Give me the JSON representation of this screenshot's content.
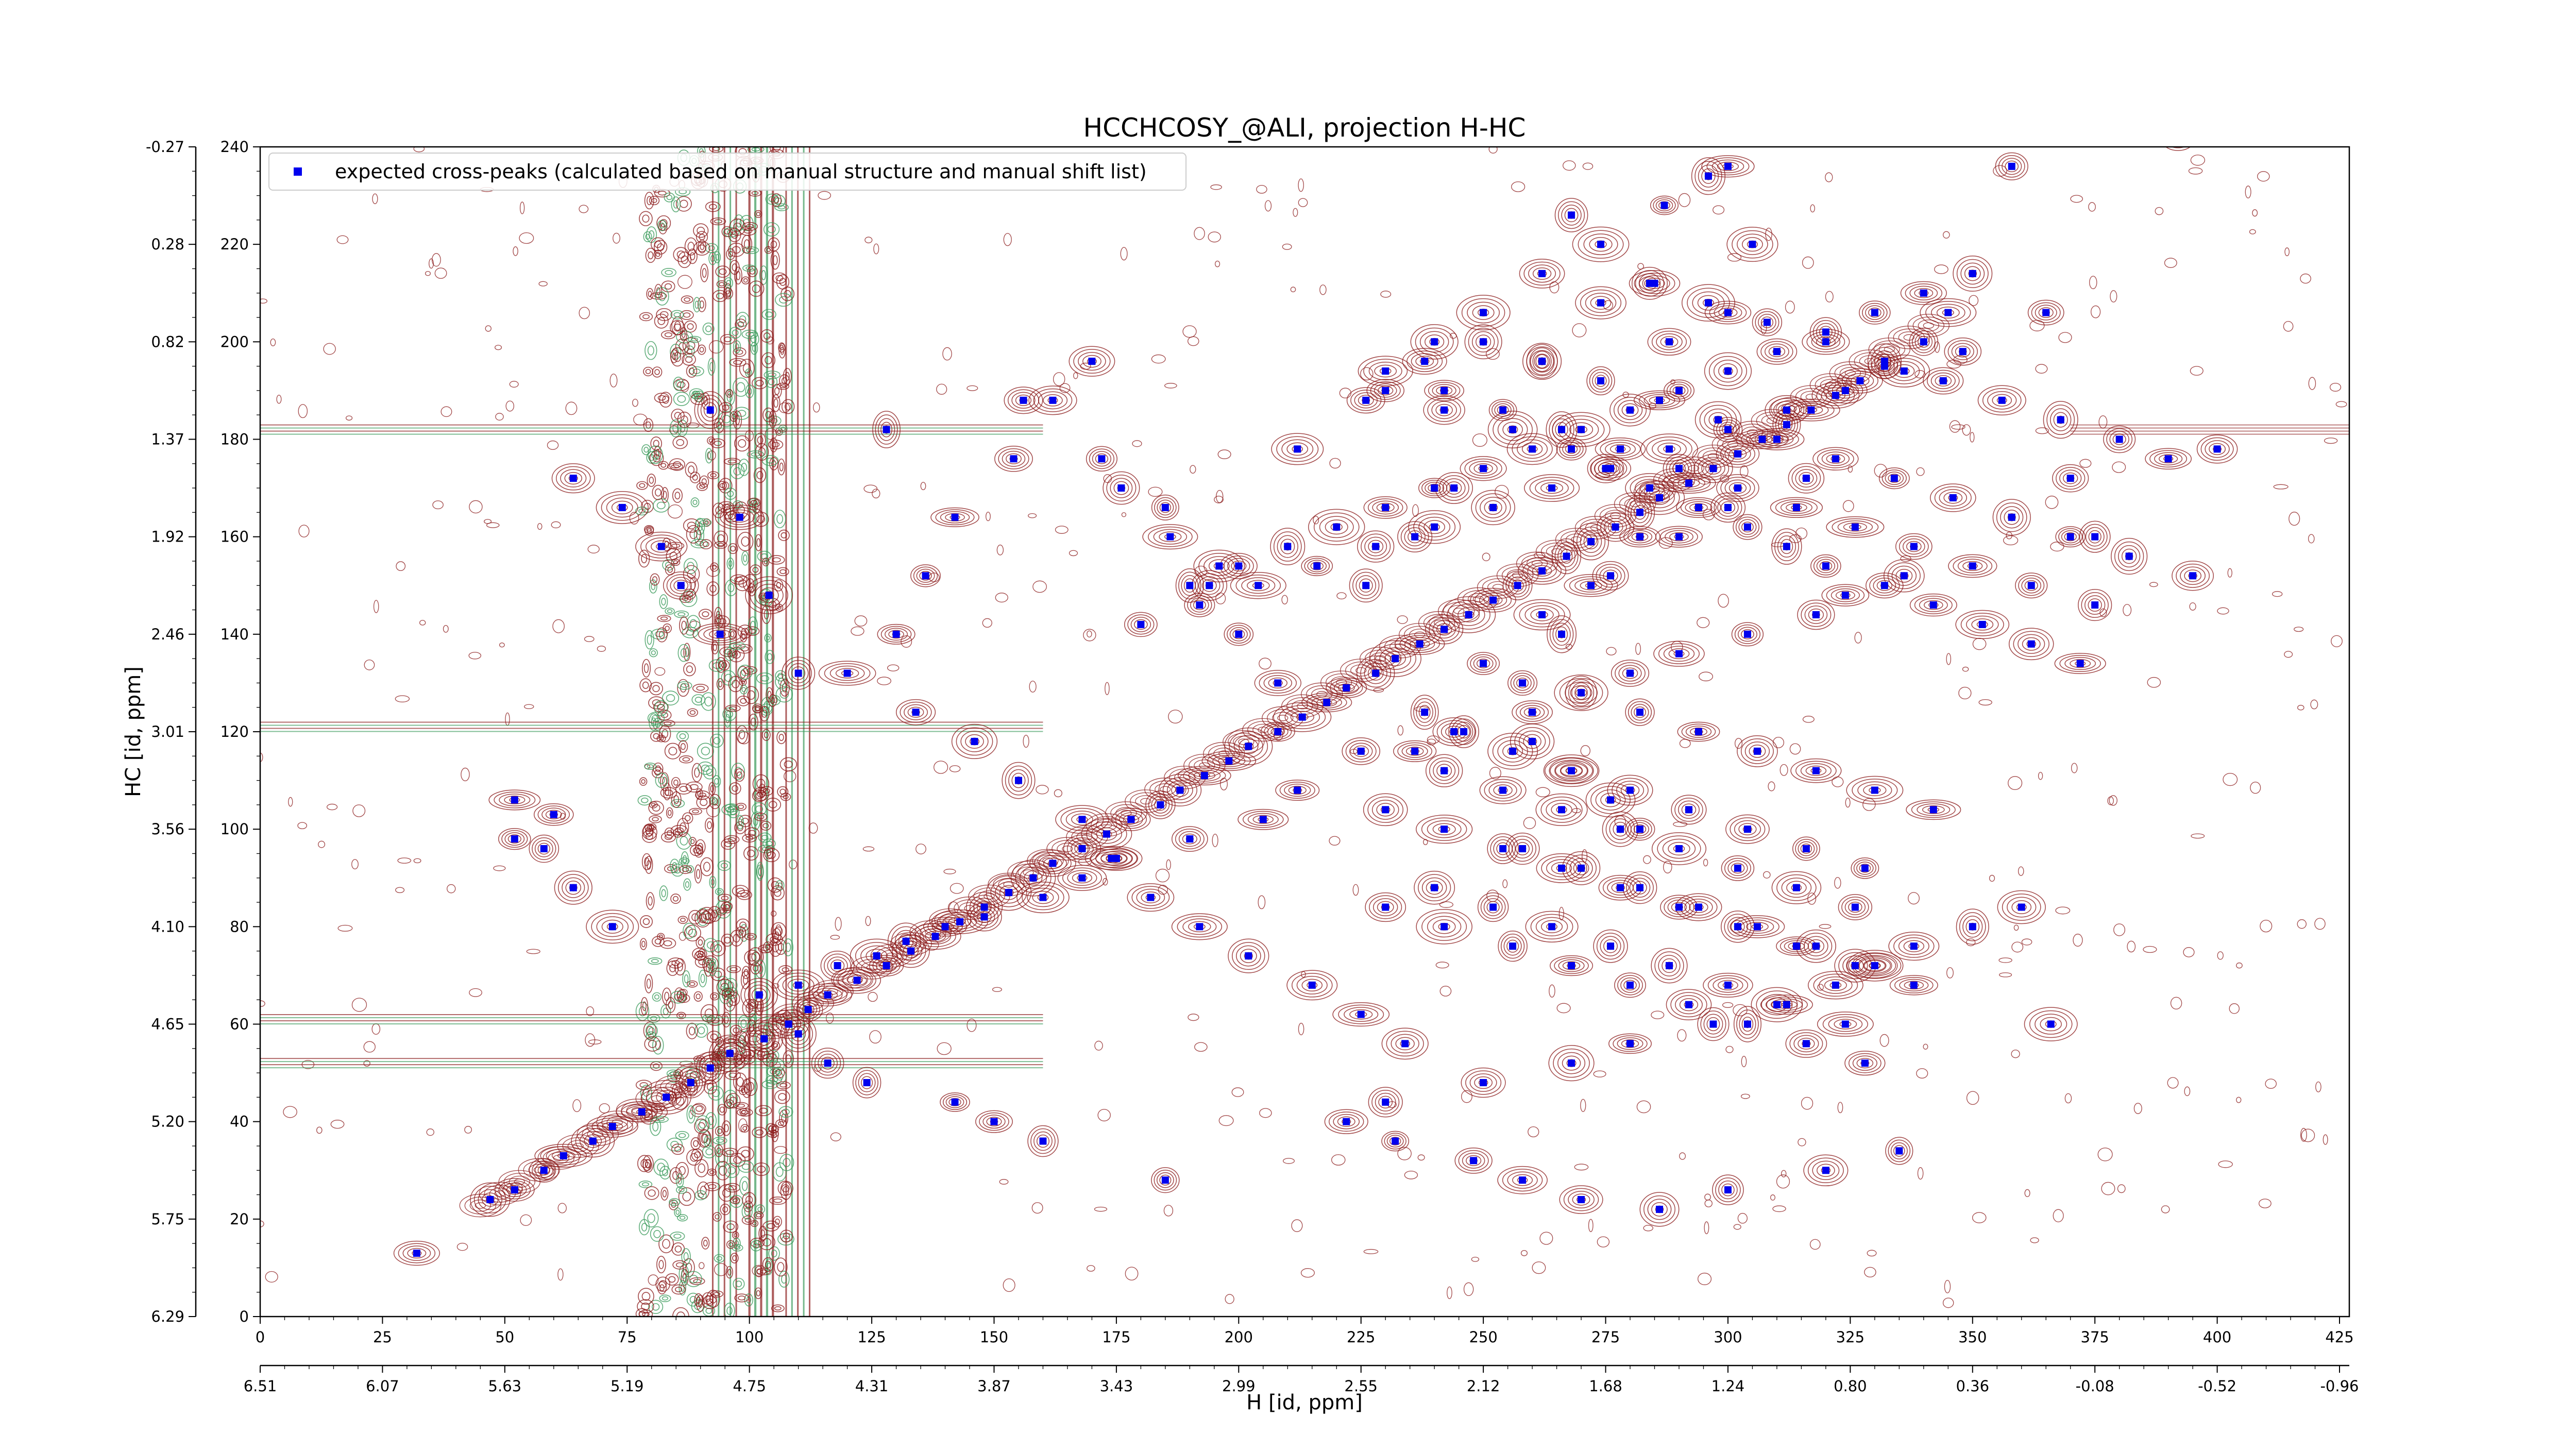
{
  "chart_data": {
    "type": "scatter",
    "title": "HCCHCOSY_@ALI, projection H-HC",
    "xlabel": "H [id, ppm]",
    "ylabel": "HC [id, ppm]",
    "xlim": [
      0,
      427
    ],
    "ylim": [
      0,
      240
    ],
    "x_ticks": [
      0,
      25,
      50,
      75,
      100,
      125,
      150,
      175,
      200,
      225,
      250,
      275,
      300,
      325,
      350,
      375,
      400,
      425
    ],
    "y_ticks": [
      0,
      20,
      40,
      60,
      80,
      100,
      120,
      140,
      160,
      180,
      200,
      220,
      240
    ],
    "x_ppm_ticks": [
      "6.51",
      "6.07",
      "5.63",
      "5.19",
      "4.75",
      "4.31",
      "3.87",
      "3.43",
      "2.99",
      "2.55",
      "2.12",
      "1.68",
      "1.24",
      "0.80",
      "0.36",
      "-0.08",
      "-0.52",
      "-0.96"
    ],
    "y_ppm_ticks": [
      "6.29",
      "5.75",
      "5.20",
      "4.65",
      "4.10",
      "3.56",
      "3.01",
      "2.46",
      "1.92",
      "1.37",
      "0.82",
      "0.28",
      "-0.27"
    ],
    "legend": {
      "position": "top-left",
      "entries": [
        "expected cross-peaks (calculated based on manual structure and manual shift list)"
      ]
    },
    "colors": {
      "marker": "#0000ee",
      "contour_positive": "#8b1a1a",
      "contour_negative": "#3a9a5a"
    },
    "series": [
      {
        "name": "expected cross-peaks (calculated based on manual structure and manual shift list)",
        "x": [
          47,
          52,
          58,
          62,
          68,
          72,
          78,
          83,
          88,
          92,
          96,
          103,
          108,
          112,
          116,
          122,
          128,
          133,
          138,
          143,
          148,
          153,
          158,
          162,
          168,
          173,
          178,
          184,
          188,
          193,
          198,
          202,
          208,
          213,
          218,
          222,
          228,
          232,
          237,
          242,
          247,
          252,
          257,
          262,
          267,
          272,
          277,
          282,
          286,
          292,
          297,
          302,
          307,
          312,
          317,
          322,
          327,
          332,
          340,
          345,
          32,
          52,
          60,
          102,
          110,
          118,
          126,
          132,
          140,
          148,
          160,
          168,
          175,
          190,
          205,
          212,
          225,
          238,
          250,
          262,
          276,
          290,
          300,
          316,
          128,
          156,
          172,
          185,
          196,
          212,
          226,
          238,
          250,
          262,
          274,
          287,
          300,
          316,
          240,
          262,
          274,
          285,
          268,
          296,
          305,
          322,
          358,
          365,
          392,
          400,
          370,
          375,
          288,
          300,
          230,
          242,
          256,
          268,
          275,
          284,
          294,
          304,
          312,
          320,
          332,
          342,
          352,
          362,
          372,
          236,
          246,
          260,
          270,
          280,
          290,
          304,
          318,
          324,
          336,
          52,
          58,
          64,
          72,
          110,
          116,
          124,
          142,
          150,
          160,
          185,
          64,
          74,
          82,
          86,
          94,
          120,
          134,
          146,
          155,
          168,
          174,
          182,
          192,
          202,
          215,
          225,
          234,
          260,
          268,
          276,
          282,
          222,
          232,
          248,
          258,
          270,
          286,
          300,
          320,
          335,
          230,
          250,
          268,
          280,
          297,
          310,
          322,
          330,
          338,
          350,
          230,
          242,
          256,
          268,
          280,
          292,
          304,
          316,
          328,
          240,
          252,
          264,
          276,
          288,
          300,
          312,
          324,
          258,
          270,
          282,
          294,
          306,
          318,
          330,
          230,
          242,
          254,
          266,
          278,
          290,
          302,
          314,
          326,
          338,
          242,
          254,
          266,
          278,
          290,
          302,
          314,
          326,
          244,
          256,
          268,
          280,
          292,
          304,
          316,
          328,
          270,
          282,
          294,
          306,
          318,
          330,
          342,
          360,
          366,
          190,
          200,
          210,
          220,
          230,
          240,
          250,
          260,
          270,
          280,
          290,
          300,
          310,
          320,
          330,
          340,
          350,
          180,
          192,
          204,
          216,
          228,
          240,
          252,
          264,
          276,
          288,
          300,
          312,
          324,
          336,
          348,
          230,
          242,
          254,
          266,
          278,
          290,
          302,
          314,
          326,
          338,
          350,
          362,
          375,
          250,
          262,
          274,
          286,
          298,
          310,
          322,
          334,
          346,
          358,
          370,
          382,
          395,
          284,
          296,
          308,
          320,
          332,
          344,
          356,
          368,
          380,
          390,
          92,
          98,
          104,
          110,
          130,
          136,
          142,
          154,
          162,
          170,
          176,
          186,
          194,
          200,
          208,
          226,
          236,
          244,
          258,
          266,
          272,
          282
        ],
        "y": [
          24,
          26,
          30,
          33,
          36,
          39,
          42,
          45,
          48,
          51,
          54,
          57,
          60,
          63,
          66,
          69,
          72,
          75,
          78,
          81,
          84,
          87,
          90,
          93,
          96,
          99,
          102,
          105,
          108,
          111,
          114,
          117,
          120,
          123,
          126,
          129,
          132,
          135,
          138,
          141,
          144,
          147,
          150,
          153,
          156,
          159,
          162,
          165,
          168,
          171,
          174,
          177,
          180,
          183,
          186,
          189,
          192,
          195,
          200,
          206,
          13,
          98,
          103,
          66,
          68,
          72,
          74,
          77,
          80,
          82,
          86,
          90,
          94,
          98,
          102,
          108,
          116,
          124,
          134,
          144,
          152,
          160,
          166,
          172,
          182,
          188,
          176,
          166,
          154,
          178,
          188,
          196,
          206,
          214,
          220,
          228,
          236,
          242,
          200,
          196,
          208,
          212,
          226,
          234,
          220,
          244,
          236,
          206,
          242,
          178,
          172,
          160,
          200,
          206,
          190,
          186,
          182,
          178,
          174,
          170,
          166,
          162,
          158,
          154,
          150,
          146,
          142,
          138,
          134,
          116,
          120,
          124,
          128,
          132,
          136,
          140,
          144,
          148,
          152,
          106,
          96,
          88,
          80,
          58,
          52,
          48,
          44,
          40,
          36,
          28,
          172,
          166,
          158,
          150,
          140,
          132,
          124,
          118,
          110,
          102,
          94,
          86,
          80,
          74,
          68,
          62,
          56,
          118,
          112,
          106,
          100,
          40,
          36,
          32,
          28,
          24,
          22,
          26,
          30,
          34,
          44,
          48,
          52,
          56,
          60,
          64,
          68,
          72,
          76,
          80,
          84,
          80,
          76,
          72,
          68,
          64,
          60,
          56,
          52,
          88,
          84,
          80,
          76,
          72,
          68,
          64,
          60,
          96,
          92,
          88,
          84,
          80,
          76,
          72,
          104,
          100,
          96,
          92,
          88,
          84,
          80,
          76,
          72,
          68,
          112,
          108,
          104,
          100,
          96,
          92,
          88,
          84,
          120,
          116,
          112,
          108,
          104,
          100,
          96,
          92,
          128,
          124,
          120,
          116,
          112,
          108,
          104,
          84,
          60,
          150,
          154,
          158,
          162,
          166,
          170,
          174,
          178,
          182,
          186,
          190,
          194,
          198,
          202,
          206,
          210,
          214,
          142,
          146,
          150,
          154,
          158,
          162,
          166,
          170,
          174,
          178,
          182,
          186,
          190,
          194,
          198,
          194,
          190,
          186,
          182,
          178,
          174,
          170,
          166,
          162,
          158,
          154,
          150,
          146,
          200,
          196,
          192,
          188,
          184,
          180,
          176,
          172,
          168,
          164,
          160,
          156,
          152,
          212,
          208,
          204,
          200,
          196,
          192,
          188,
          184,
          180,
          176,
          186,
          164,
          148,
          132,
          140,
          152,
          164,
          176,
          188,
          196,
          170,
          160,
          150,
          140,
          130,
          150,
          160,
          170,
          130,
          140,
          150,
          160
        ]
      }
    ]
  }
}
